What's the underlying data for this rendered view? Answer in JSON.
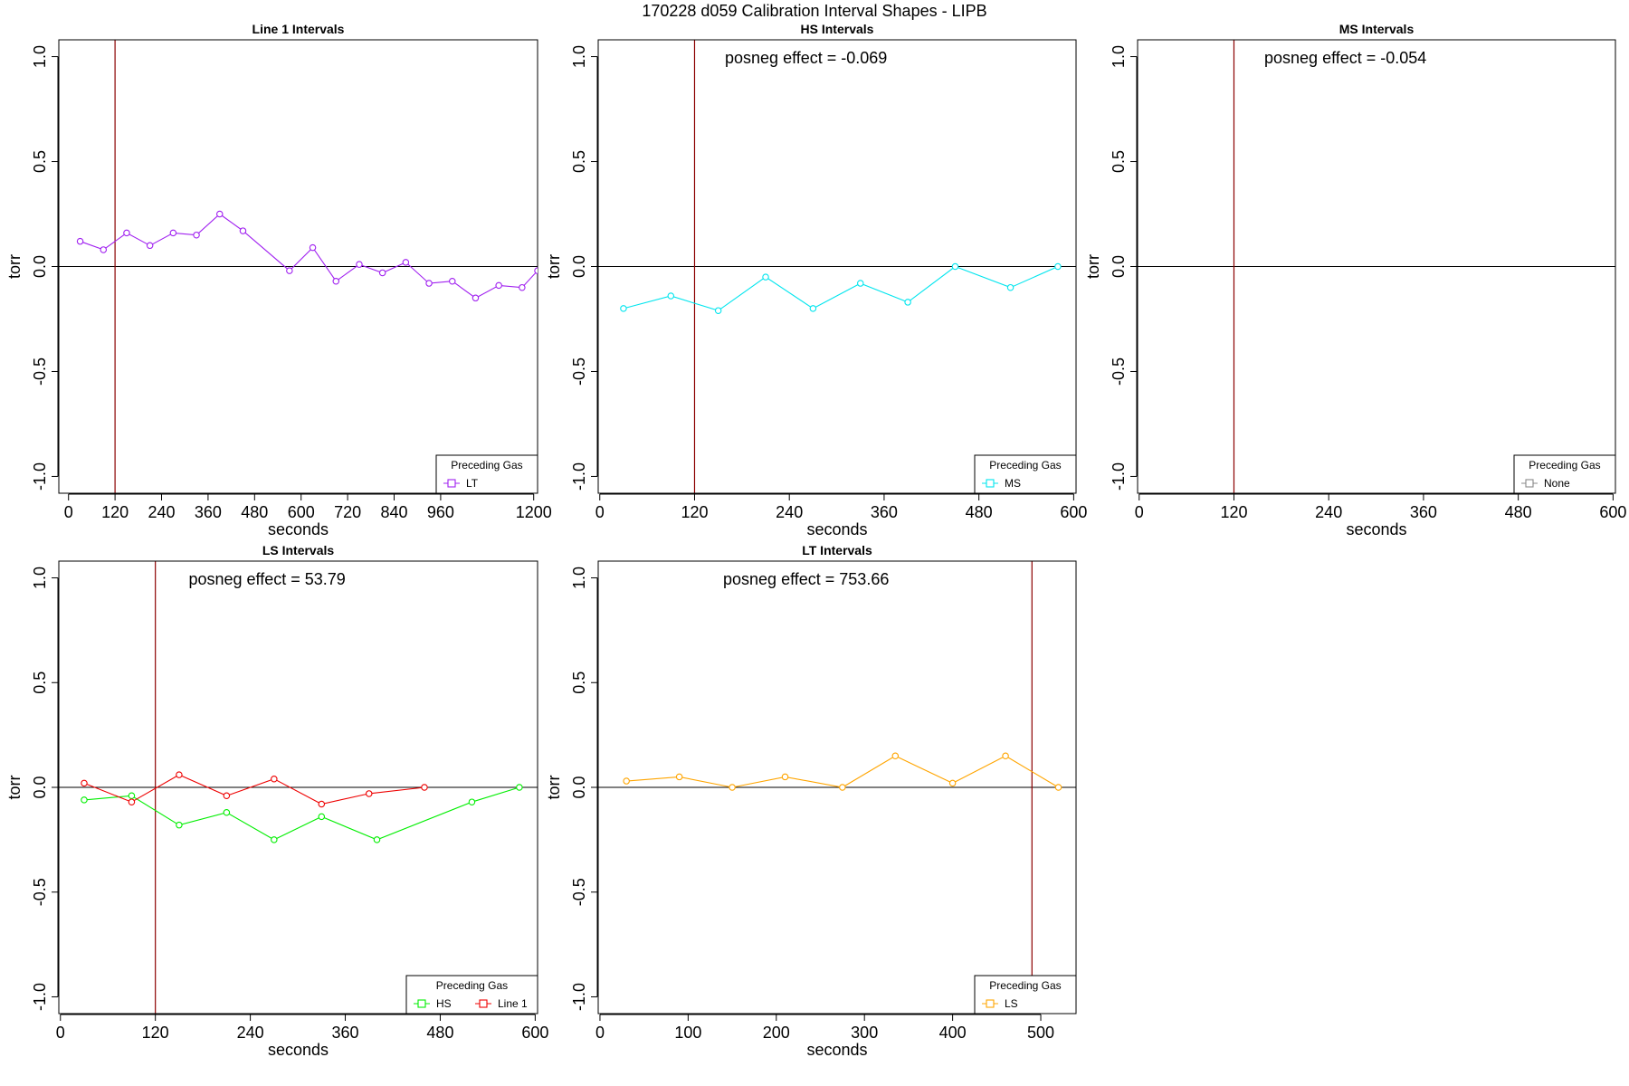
{
  "suptitle": "170228   d059   Calibration Interval Shapes - LIPB",
  "legend_title": "Preceding Gas",
  "colors": {
    "LT": "#a020f0",
    "MS": "#00e5ee",
    "None": "#888888",
    "HS": "#00ee00",
    "Line 1": "#ee0000",
    "LS": "#ffa500",
    "vline": "#8b0000"
  },
  "chart_data": [
    {
      "type": "line",
      "title": "Line 1 Intervals",
      "xlabel": "seconds",
      "ylabel": "torr",
      "xlim": [
        -25,
        1210
      ],
      "ylim": [
        -1.08,
        1.08
      ],
      "xticks": [
        0,
        120,
        240,
        360,
        480,
        600,
        720,
        840,
        960,
        1200
      ],
      "yticks": [
        -1.0,
        -0.5,
        0.0,
        0.5,
        1.0
      ],
      "ytick_labels": [
        "-1.0",
        "-0.5",
        "0.0",
        "0.5",
        "1.0"
      ],
      "vline": 120,
      "annotation": "",
      "legend": [
        "LT"
      ],
      "series": [
        {
          "name": "LT",
          "x": [
            30,
            90,
            150,
            210,
            270,
            330,
            390,
            450,
            570,
            630,
            690,
            750,
            810,
            870,
            930,
            990,
            1050,
            1110,
            1170,
            1210
          ],
          "y": [
            0.12,
            0.08,
            0.16,
            0.1,
            0.16,
            0.15,
            0.25,
            0.17,
            -0.02,
            0.09,
            -0.07,
            0.01,
            -0.03,
            0.02,
            -0.08,
            -0.07,
            -0.15,
            -0.09,
            -0.1,
            -0.02
          ]
        }
      ]
    },
    {
      "type": "line",
      "title": "HS Intervals",
      "xlabel": "seconds",
      "ylabel": "torr",
      "xlim": [
        -2,
        603
      ],
      "ylim": [
        -1.08,
        1.08
      ],
      "xticks": [
        0,
        120,
        240,
        360,
        480,
        600
      ],
      "yticks": [
        -1.0,
        -0.5,
        0.0,
        0.5,
        1.0
      ],
      "ytick_labels": [
        "-1.0",
        "-0.5",
        "0.0",
        "0.5",
        "1.0"
      ],
      "vline": 120,
      "annotation": "posneg effect = -0.069",
      "legend": [
        "MS"
      ],
      "series": [
        {
          "name": "MS",
          "x": [
            30,
            90,
            150,
            210,
            270,
            330,
            390,
            450,
            520,
            580
          ],
          "y": [
            -0.2,
            -0.14,
            -0.21,
            -0.05,
            -0.2,
            -0.08,
            -0.17,
            0.0,
            -0.1,
            0.0
          ]
        }
      ]
    },
    {
      "type": "line",
      "title": "MS Intervals",
      "xlabel": "seconds",
      "ylabel": "torr",
      "xlim": [
        -2,
        603
      ],
      "ylim": [
        -1.08,
        1.08
      ],
      "xticks": [
        0,
        120,
        240,
        360,
        480,
        600
      ],
      "yticks": [
        -1.0,
        -0.5,
        0.0,
        0.5,
        1.0
      ],
      "ytick_labels": [
        "-1.0",
        "-0.5",
        "0.0",
        "0.5",
        "1.0"
      ],
      "vline": 120,
      "annotation": "posneg effect = -0.054",
      "legend": [
        "None"
      ],
      "series": []
    },
    {
      "type": "line",
      "title": "LS Intervals",
      "xlabel": "seconds",
      "ylabel": "torr",
      "xlim": [
        -2,
        603
      ],
      "ylim": [
        -1.08,
        1.08
      ],
      "xticks": [
        0,
        120,
        240,
        360,
        480,
        600
      ],
      "yticks": [
        -1.0,
        -0.5,
        0.0,
        0.5,
        1.0
      ],
      "ytick_labels": [
        "-1.0",
        "-0.5",
        "0.0",
        "0.5",
        "1.0"
      ],
      "vline": 120,
      "annotation": "posneg effect = 53.79",
      "legend": [
        "HS",
        "Line 1"
      ],
      "series": [
        {
          "name": "HS",
          "x": [
            30,
            90,
            150,
            210,
            270,
            330,
            400,
            520,
            580
          ],
          "y": [
            -0.06,
            -0.04,
            -0.18,
            -0.12,
            -0.25,
            -0.14,
            -0.25,
            -0.07,
            0.0
          ]
        },
        {
          "name": "Line 1",
          "x": [
            30,
            90,
            150,
            210,
            270,
            330,
            390,
            460
          ],
          "y": [
            0.02,
            -0.07,
            0.06,
            -0.04,
            0.04,
            -0.08,
            -0.03,
            0.0
          ]
        }
      ]
    },
    {
      "type": "line",
      "title": "LT Intervals",
      "xlabel": "seconds",
      "ylabel": "torr",
      "xlim": [
        -2,
        540
      ],
      "ylim": [
        -1.08,
        1.08
      ],
      "xticks": [
        0,
        100,
        200,
        300,
        400,
        500
      ],
      "yticks": [
        -1.0,
        -0.5,
        0.0,
        0.5,
        1.0
      ],
      "ytick_labels": [
        "-1.0",
        "-0.5",
        "0.0",
        "0.5",
        "1.0"
      ],
      "vline": 490,
      "annotation": "posneg effect = 753.66",
      "legend": [
        "LS"
      ],
      "series": [
        {
          "name": "LS",
          "x": [
            30,
            90,
            150,
            210,
            275,
            335,
            400,
            460,
            520
          ],
          "y": [
            0.03,
            0.05,
            0.0,
            0.05,
            0.0,
            0.15,
            0.02,
            0.15,
            0.0
          ]
        }
      ]
    }
  ]
}
